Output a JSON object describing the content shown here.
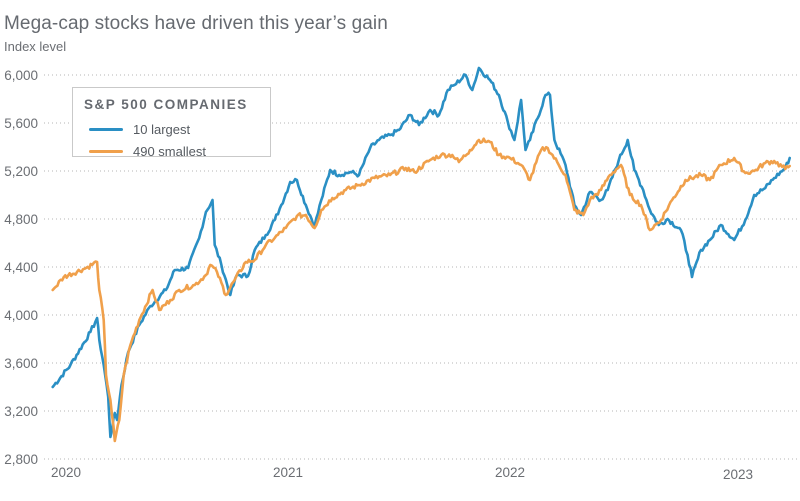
{
  "chart_data": {
    "type": "line",
    "title": "Mega-cap stocks have driven this year’s gain",
    "subtitle": "Index level",
    "xlabel": "",
    "ylabel": "Index level",
    "ylim": [
      2800,
      6000
    ],
    "xlim": [
      2019.94,
      2023.3
    ],
    "y_ticks": [
      2800,
      3200,
      3600,
      4000,
      4400,
      4800,
      5200,
      5600,
      6000
    ],
    "y_tick_labels": [
      "2,800",
      "3,200",
      "3,600",
      "4,000",
      "4,400",
      "4,800",
      "5,200",
      "5,600",
      "6,000"
    ],
    "x_ticks": [
      2020,
      2021,
      2022,
      2023
    ],
    "x_tick_labels": [
      "2020",
      "2021",
      "2022",
      "2023"
    ],
    "grid": "horizontal dotted",
    "legend": {
      "title": "S&P 500 COMPANIES",
      "placement": "top-left"
    },
    "series": [
      {
        "name": "10 largest",
        "color": "#2a8fc4",
        "points": [
          [
            2019.94,
            3400
          ],
          [
            2020.02,
            3583
          ],
          [
            2020.11,
            3858
          ],
          [
            2020.14,
            3975
          ],
          [
            2020.15,
            3792
          ],
          [
            2020.17,
            3583
          ],
          [
            2020.19,
            3317
          ],
          [
            2020.2,
            2983
          ],
          [
            2020.22,
            3183
          ],
          [
            2020.23,
            3125
          ],
          [
            2020.25,
            3417
          ],
          [
            2020.28,
            3692
          ],
          [
            2020.33,
            3917
          ],
          [
            2020.38,
            4075
          ],
          [
            2020.45,
            4208
          ],
          [
            2020.49,
            4375
          ],
          [
            2020.55,
            4392
          ],
          [
            2020.6,
            4642
          ],
          [
            2020.63,
            4858
          ],
          [
            2020.66,
            4958
          ],
          [
            2020.67,
            4583
          ],
          [
            2020.7,
            4417
          ],
          [
            2020.74,
            4167
          ],
          [
            2020.77,
            4333
          ],
          [
            2020.82,
            4325
          ],
          [
            2020.85,
            4542
          ],
          [
            2020.9,
            4667
          ],
          [
            2020.94,
            4792
          ],
          [
            2020.97,
            4917
          ],
          [
            2021.01,
            5108
          ],
          [
            2021.04,
            5125
          ],
          [
            2021.08,
            4917
          ],
          [
            2021.12,
            4742
          ],
          [
            2021.15,
            4958
          ],
          [
            2021.19,
            5208
          ],
          [
            2021.23,
            5167
          ],
          [
            2021.28,
            5192
          ],
          [
            2021.32,
            5167
          ],
          [
            2021.37,
            5392
          ],
          [
            2021.41,
            5458
          ],
          [
            2021.46,
            5500
          ],
          [
            2021.5,
            5542
          ],
          [
            2021.55,
            5667
          ],
          [
            2021.59,
            5583
          ],
          [
            2021.64,
            5708
          ],
          [
            2021.68,
            5667
          ],
          [
            2021.72,
            5875
          ],
          [
            2021.75,
            5917
          ],
          [
            2021.8,
            6000
          ],
          [
            2021.83,
            5875
          ],
          [
            2021.86,
            6058
          ],
          [
            2021.91,
            5958
          ],
          [
            2021.95,
            5833
          ],
          [
            2021.99,
            5608
          ],
          [
            2022.02,
            5458
          ],
          [
            2022.05,
            5792
          ],
          [
            2022.07,
            5375
          ],
          [
            2022.09,
            5458
          ],
          [
            2022.16,
            5833
          ],
          [
            2022.18,
            5833
          ],
          [
            2022.2,
            5458
          ],
          [
            2022.25,
            5250
          ],
          [
            2022.29,
            4917
          ],
          [
            2022.32,
            4833
          ],
          [
            2022.36,
            5025
          ],
          [
            2022.41,
            4958
          ],
          [
            2022.44,
            5042
          ],
          [
            2022.49,
            5292
          ],
          [
            2022.53,
            5458
          ],
          [
            2022.56,
            5208
          ],
          [
            2022.6,
            5042
          ],
          [
            2022.63,
            4875
          ],
          [
            2022.67,
            4750
          ],
          [
            2022.71,
            4800
          ],
          [
            2022.77,
            4708
          ],
          [
            2022.8,
            4500
          ],
          [
            2022.82,
            4317
          ],
          [
            2022.86,
            4542
          ],
          [
            2022.9,
            4625
          ],
          [
            2022.95,
            4750
          ],
          [
            2023.01,
            4625
          ],
          [
            2023.06,
            4792
          ],
          [
            2023.1,
            5000
          ],
          [
            2023.15,
            5058
          ],
          [
            2023.19,
            5142
          ],
          [
            2023.24,
            5225
          ],
          [
            2023.26,
            5308
          ]
        ]
      },
      {
        "name": "490 smallest",
        "color": "#f0a04b",
        "points": [
          [
            2019.94,
            4208
          ],
          [
            2019.99,
            4317
          ],
          [
            2020.09,
            4392
          ],
          [
            2020.14,
            4442
          ],
          [
            2020.15,
            4208
          ],
          [
            2020.17,
            3958
          ],
          [
            2020.18,
            3500
          ],
          [
            2020.2,
            3292
          ],
          [
            2020.22,
            2950
          ],
          [
            2020.24,
            3125
          ],
          [
            2020.26,
            3500
          ],
          [
            2020.29,
            3750
          ],
          [
            2020.33,
            3958
          ],
          [
            2020.39,
            4208
          ],
          [
            2020.42,
            4042
          ],
          [
            2020.47,
            4125
          ],
          [
            2020.51,
            4208
          ],
          [
            2020.58,
            4250
          ],
          [
            2020.63,
            4333
          ],
          [
            2020.65,
            4417
          ],
          [
            2020.68,
            4358
          ],
          [
            2020.72,
            4167
          ],
          [
            2020.76,
            4292
          ],
          [
            2020.81,
            4442
          ],
          [
            2020.85,
            4458
          ],
          [
            2020.9,
            4583
          ],
          [
            2020.94,
            4642
          ],
          [
            2020.99,
            4725
          ],
          [
            2021.04,
            4825
          ],
          [
            2021.08,
            4833
          ],
          [
            2021.12,
            4725
          ],
          [
            2021.15,
            4875
          ],
          [
            2021.2,
            4975
          ],
          [
            2021.26,
            5042
          ],
          [
            2021.32,
            5083
          ],
          [
            2021.39,
            5142
          ],
          [
            2021.46,
            5167
          ],
          [
            2021.53,
            5225
          ],
          [
            2021.57,
            5192
          ],
          [
            2021.64,
            5292
          ],
          [
            2021.69,
            5333
          ],
          [
            2021.74,
            5333
          ],
          [
            2021.77,
            5275
          ],
          [
            2021.82,
            5375
          ],
          [
            2021.86,
            5458
          ],
          [
            2021.91,
            5442
          ],
          [
            2021.95,
            5333
          ],
          [
            2022.0,
            5308
          ],
          [
            2022.05,
            5250
          ],
          [
            2022.09,
            5125
          ],
          [
            2022.14,
            5375
          ],
          [
            2022.17,
            5392
          ],
          [
            2022.22,
            5250
          ],
          [
            2022.25,
            5167
          ],
          [
            2022.29,
            4875
          ],
          [
            2022.33,
            4833
          ],
          [
            2022.36,
            4958
          ],
          [
            2022.41,
            5042
          ],
          [
            2022.45,
            5167
          ],
          [
            2022.5,
            5250
          ],
          [
            2022.54,
            5000
          ],
          [
            2022.59,
            4917
          ],
          [
            2022.63,
            4708
          ],
          [
            2022.68,
            4792
          ],
          [
            2022.73,
            4958
          ],
          [
            2022.79,
            5125
          ],
          [
            2022.86,
            5167
          ],
          [
            2022.9,
            5125
          ],
          [
            2022.95,
            5250
          ],
          [
            2023.01,
            5308
          ],
          [
            2023.06,
            5183
          ],
          [
            2023.1,
            5200
          ],
          [
            2023.15,
            5267
          ],
          [
            2023.19,
            5283
          ],
          [
            2023.24,
            5217
          ],
          [
            2023.26,
            5242
          ]
        ]
      }
    ]
  }
}
